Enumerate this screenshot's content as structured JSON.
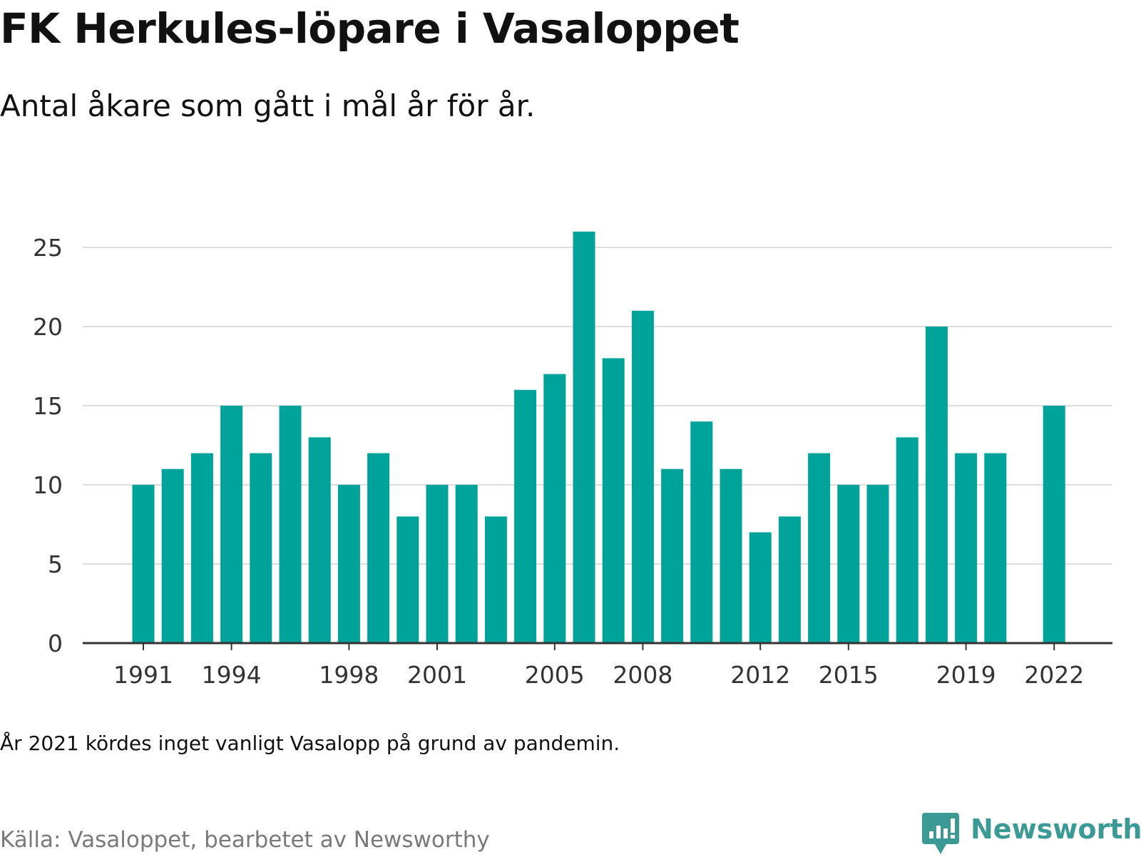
{
  "header": {
    "title": "FK Herkules-löpare i Vasaloppet",
    "subtitle": "Antal åkare som gått i mål år för år."
  },
  "footer": {
    "note": "År 2021 kördes inget vanligt Vasalopp på grund av pandemin.",
    "source": "Källa: Vasaloppet, bearbetet av Newsworthy",
    "brand": "Newsworthy",
    "brand_icon": "newsworthy-logo-icon"
  },
  "colors": {
    "bar": "#00a39a",
    "grid": "#dddddd",
    "axis": "#333333",
    "tick_text": "#333333",
    "brand": "#3c9a95",
    "source_text": "#7a7a7a"
  },
  "chart_data": {
    "type": "bar",
    "title": "FK Herkules-löpare i Vasaloppet",
    "subtitle": "Antal åkare som gått i mål år för år.",
    "xlabel": "",
    "ylabel": "",
    "categories": [
      1991,
      1992,
      1993,
      1994,
      1995,
      1996,
      1997,
      1998,
      1999,
      2000,
      2001,
      2002,
      2003,
      2004,
      2005,
      2006,
      2007,
      2008,
      2009,
      2010,
      2011,
      2012,
      2013,
      2014,
      2015,
      2016,
      2017,
      2018,
      2019,
      2020,
      2021,
      2022
    ],
    "values": [
      10,
      11,
      12,
      15,
      12,
      15,
      13,
      10,
      12,
      8,
      10,
      10,
      8,
      16,
      17,
      26,
      18,
      21,
      11,
      14,
      11,
      7,
      8,
      12,
      10,
      10,
      13,
      20,
      12,
      12,
      null,
      15
    ],
    "ylim": [
      0,
      26
    ],
    "yticks": [
      0,
      5,
      10,
      15,
      20,
      25
    ],
    "xtick_labels": [
      "1991",
      "1994",
      "1998",
      "2001",
      "2005",
      "2008",
      "2012",
      "2015",
      "2019",
      "2022"
    ],
    "grid": true,
    "legend": "none"
  }
}
